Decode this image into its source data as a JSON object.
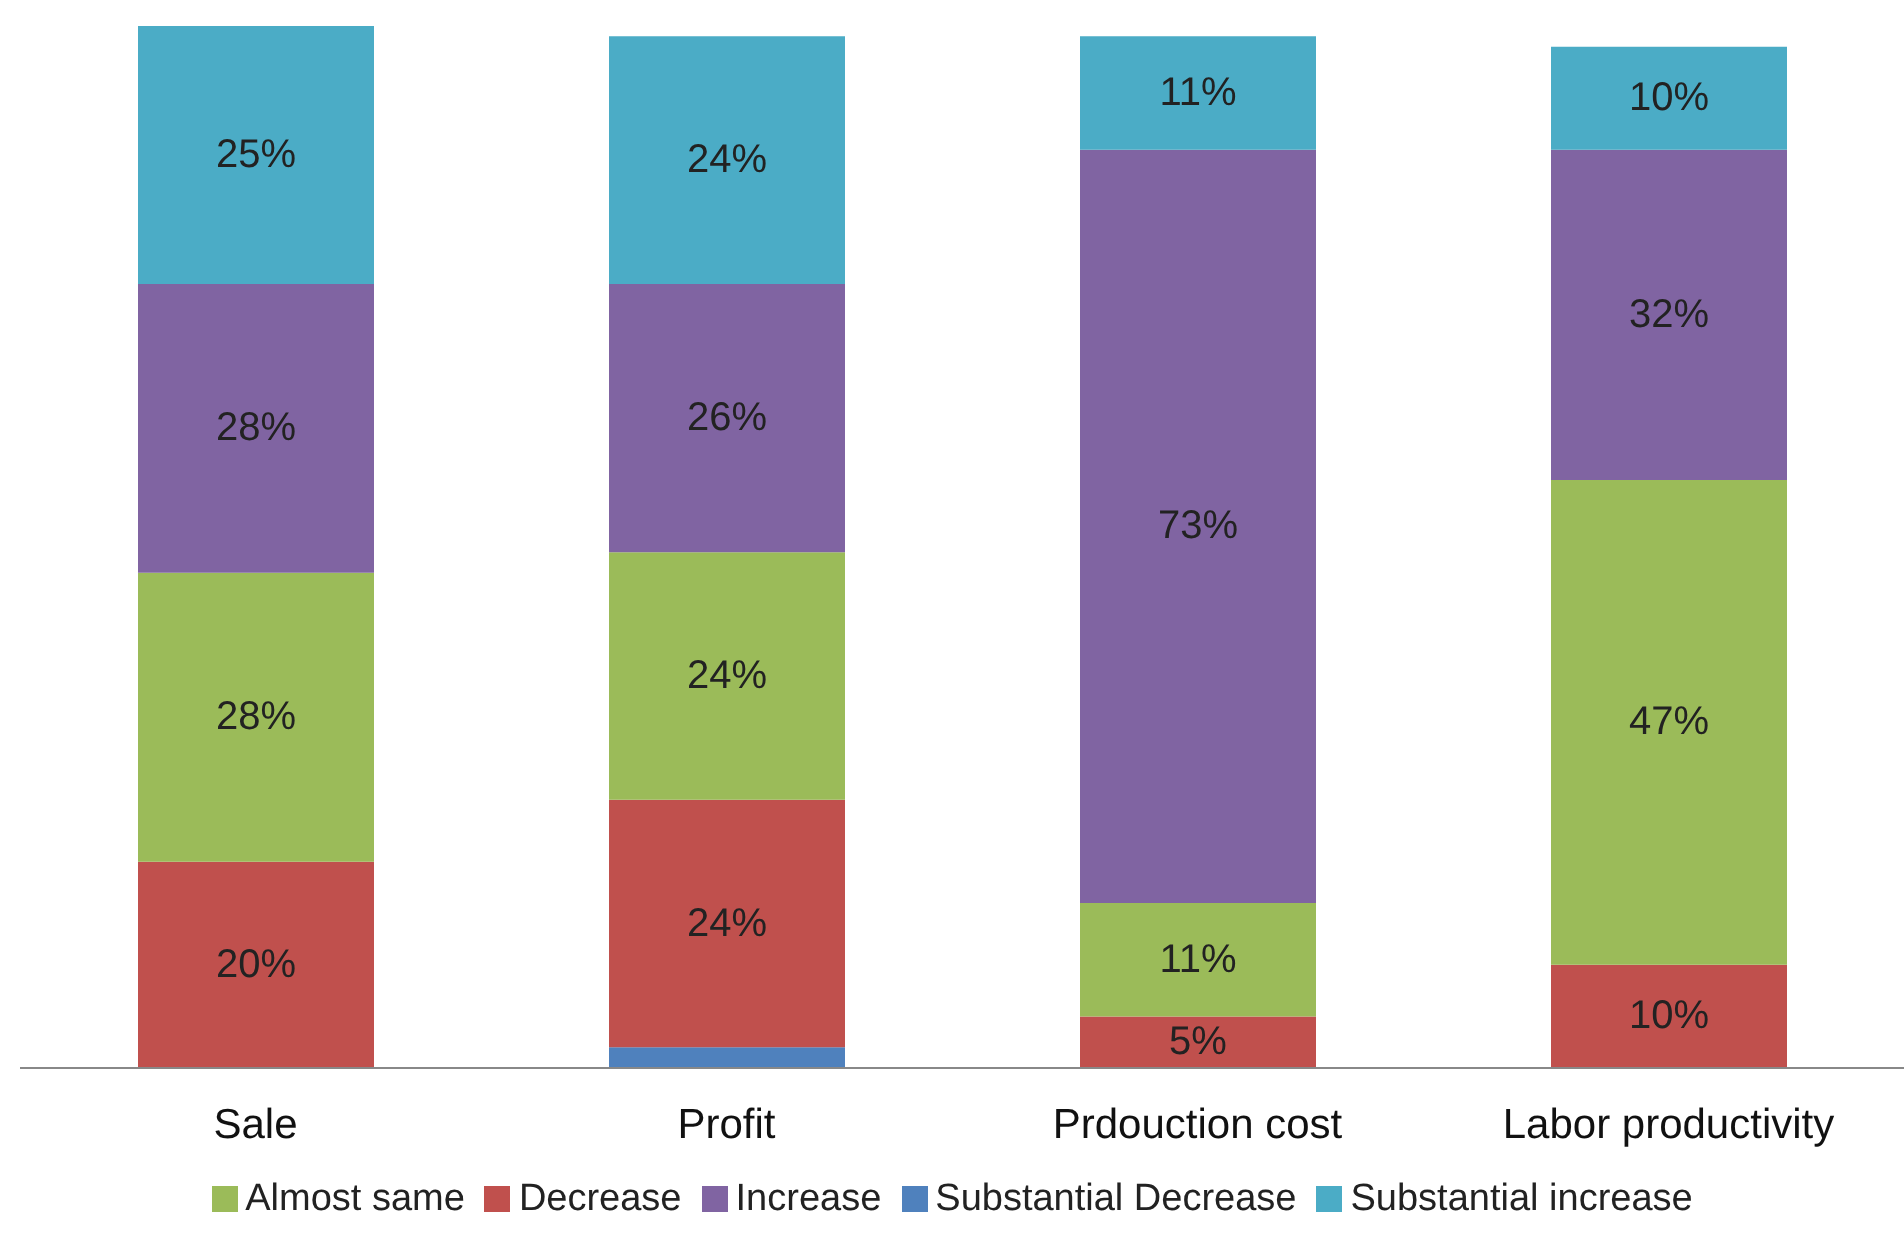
{
  "chart_data": {
    "type": "bar",
    "stacked": true,
    "categories": [
      "Sale",
      "Profit",
      "Prdouction cost",
      "Labor productivity"
    ],
    "series": [
      {
        "name": "Substantial Decrease",
        "color": "#4f81bd",
        "values": [
          null,
          2,
          null,
          null
        ],
        "value_labels": [
          null,
          null,
          null,
          null
        ]
      },
      {
        "name": "Decrease",
        "color": "#c0504d",
        "values": [
          20,
          24,
          5,
          10
        ],
        "value_labels": [
          "20%",
          "24%",
          "5%",
          "10%"
        ]
      },
      {
        "name": "Almost same",
        "color": "#9bbb59",
        "values": [
          28,
          24,
          11,
          47
        ],
        "value_labels": [
          "28%",
          "24%",
          "11%",
          "47%"
        ]
      },
      {
        "name": "Increase",
        "color": "#8064a2",
        "values": [
          28,
          26,
          73,
          32
        ],
        "value_labels": [
          "28%",
          "26%",
          "73%",
          "32%"
        ]
      },
      {
        "name": "Substantial increase",
        "color": "#4bacc6",
        "values": [
          25,
          24,
          11,
          10
        ],
        "value_labels": [
          "25%",
          "24%",
          "11%",
          "10%"
        ]
      }
    ],
    "legend": "bottom",
    "grid": false
  }
}
